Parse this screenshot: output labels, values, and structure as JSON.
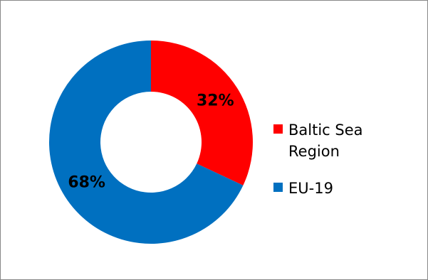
{
  "chart_data": {
    "type": "pie",
    "donut": true,
    "title": "",
    "slices": [
      {
        "label": "Baltic Sea Region",
        "value": 32,
        "display": "32%",
        "color": "#ff0000"
      },
      {
        "label": "EU-19",
        "value": 68,
        "display": "68%",
        "color": "#0070c0"
      }
    ],
    "legend_position": "right"
  }
}
